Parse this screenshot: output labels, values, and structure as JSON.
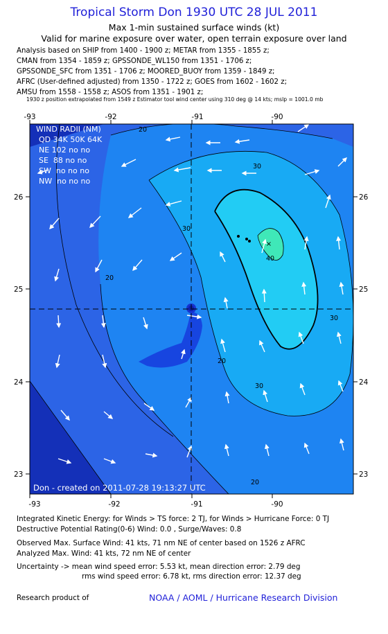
{
  "header": {
    "title": "Tropical Storm Don 1930 UTC 28 JUL 2011",
    "subtitle1": "Max 1-min sustained surface winds (kt)",
    "subtitle2": "Valid for marine exposure over water, open terrain exposure over land"
  },
  "analysis_lines": [
    "Analysis based on SHIP from 1400 - 1900 z; METAR from 1355 - 1855 z;",
    "CMAN from 1354 - 1859 z; GPSSONDE_WL150 from 1351 - 1706 z;",
    "GPSSONDE_SFC from 1351 - 1706 z; MOORED_BUOY from 1359 - 1849 z;",
    "AFRC (User-defined adjusted) from 1350 - 1722 z; GOES from 1602 - 1602 z;",
    "AMSU from 1558 - 1558 z; ASOS from 1351 - 1901 z;"
  ],
  "extrapolation_note": "1930 z position extrapolated from 1549 z Estimator tool wind center using 310 deg @ 14 kts; mslp = 1001.0 mb",
  "map": {
    "lon_ticks": [
      "-93",
      "-92",
      "-91",
      "-90"
    ],
    "lat_ticks": [
      "26",
      "25",
      "24",
      "23"
    ],
    "contour_labels": [
      "20",
      "20",
      "30",
      "30",
      "40",
      "30",
      "30",
      "20",
      "20"
    ],
    "wind_radii": {
      "title": "WIND RADII (NM)",
      "header": "QD 34K 50K 64K",
      "rows": [
        "NE 102 no no",
        "SE  88 no no",
        "SW  no no no",
        "NW  no no no"
      ]
    },
    "created_label": "Don - created on 2011-07-28 19:13:27 UTC",
    "colors": {
      "lt20": "#2c64e6",
      "r20_30": "#1e84f2",
      "r30_40": "#18aaf4",
      "gt40": "#22ccf4",
      "core": "#3fe8b8",
      "inner_low": "#1745e0",
      "outer_deep": "#1430b8"
    }
  },
  "footer": {
    "ike": "Integrated Kinetic Energy:  for Winds > TS force: 2 TJ,  for Winds > Hurricane Force: 0 TJ",
    "dpr": "Destructive Potential Rating(0-6)   Wind: 0.0 , Surge/Waves: 0.8",
    "observed": "Observed Max. Surface Wind: 41 kts, 71 nm NE of center based on 1526 z AFRC",
    "analyzed": "Analyzed Max. Wind: 41 kts, 72 nm NE of center",
    "uncertainty1": "Uncertainty -> mean wind speed error: 5.53 kt,   mean direction error: 2.79 deg",
    "uncertainty2": "rms wind speed error: 6.78 kt,   rms direction error: 12.37 deg",
    "research": "Research product of",
    "noaa": "NOAA / AOML / Hurricane Research Division"
  }
}
